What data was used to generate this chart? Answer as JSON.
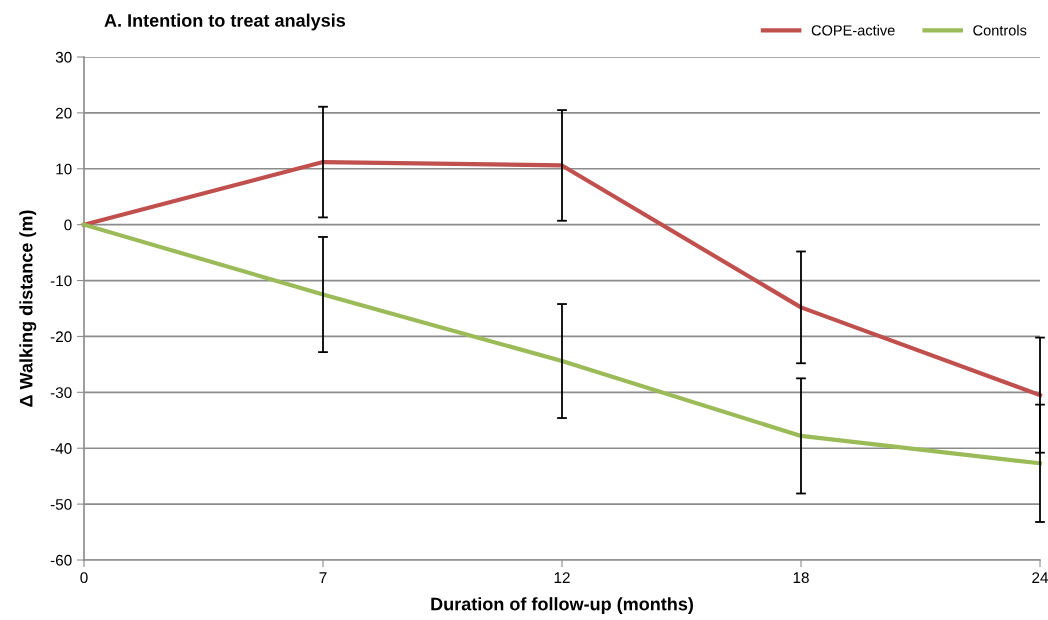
{
  "chart_data": {
    "type": "line",
    "title": "A. Intention to treat analysis",
    "xlabel": "Duration of follow-up (months)",
    "ylabel": "Δ Walking distance (m)",
    "categories": [
      "0",
      "7",
      "12",
      "18",
      "24"
    ],
    "series": [
      {
        "name": "COPE-active",
        "color": "#c0504d",
        "values": [
          0,
          11.2,
          10.6,
          -14.8,
          -30.5
        ],
        "errors": [
          null,
          9.9,
          9.9,
          10.0,
          10.3
        ]
      },
      {
        "name": "Controls",
        "color": "#9bbb59",
        "values": [
          0,
          -12.5,
          -24.4,
          -37.8,
          -42.7
        ],
        "errors": [
          null,
          10.3,
          10.2,
          10.3,
          10.5
        ]
      }
    ],
    "ylim": [
      -60,
      30
    ],
    "yticks": [
      -60,
      -50,
      -40,
      -30,
      -20,
      -10,
      0,
      10,
      20,
      30
    ],
    "grid": "y",
    "legend": "top right",
    "marker": "none",
    "line_style": "solid"
  }
}
